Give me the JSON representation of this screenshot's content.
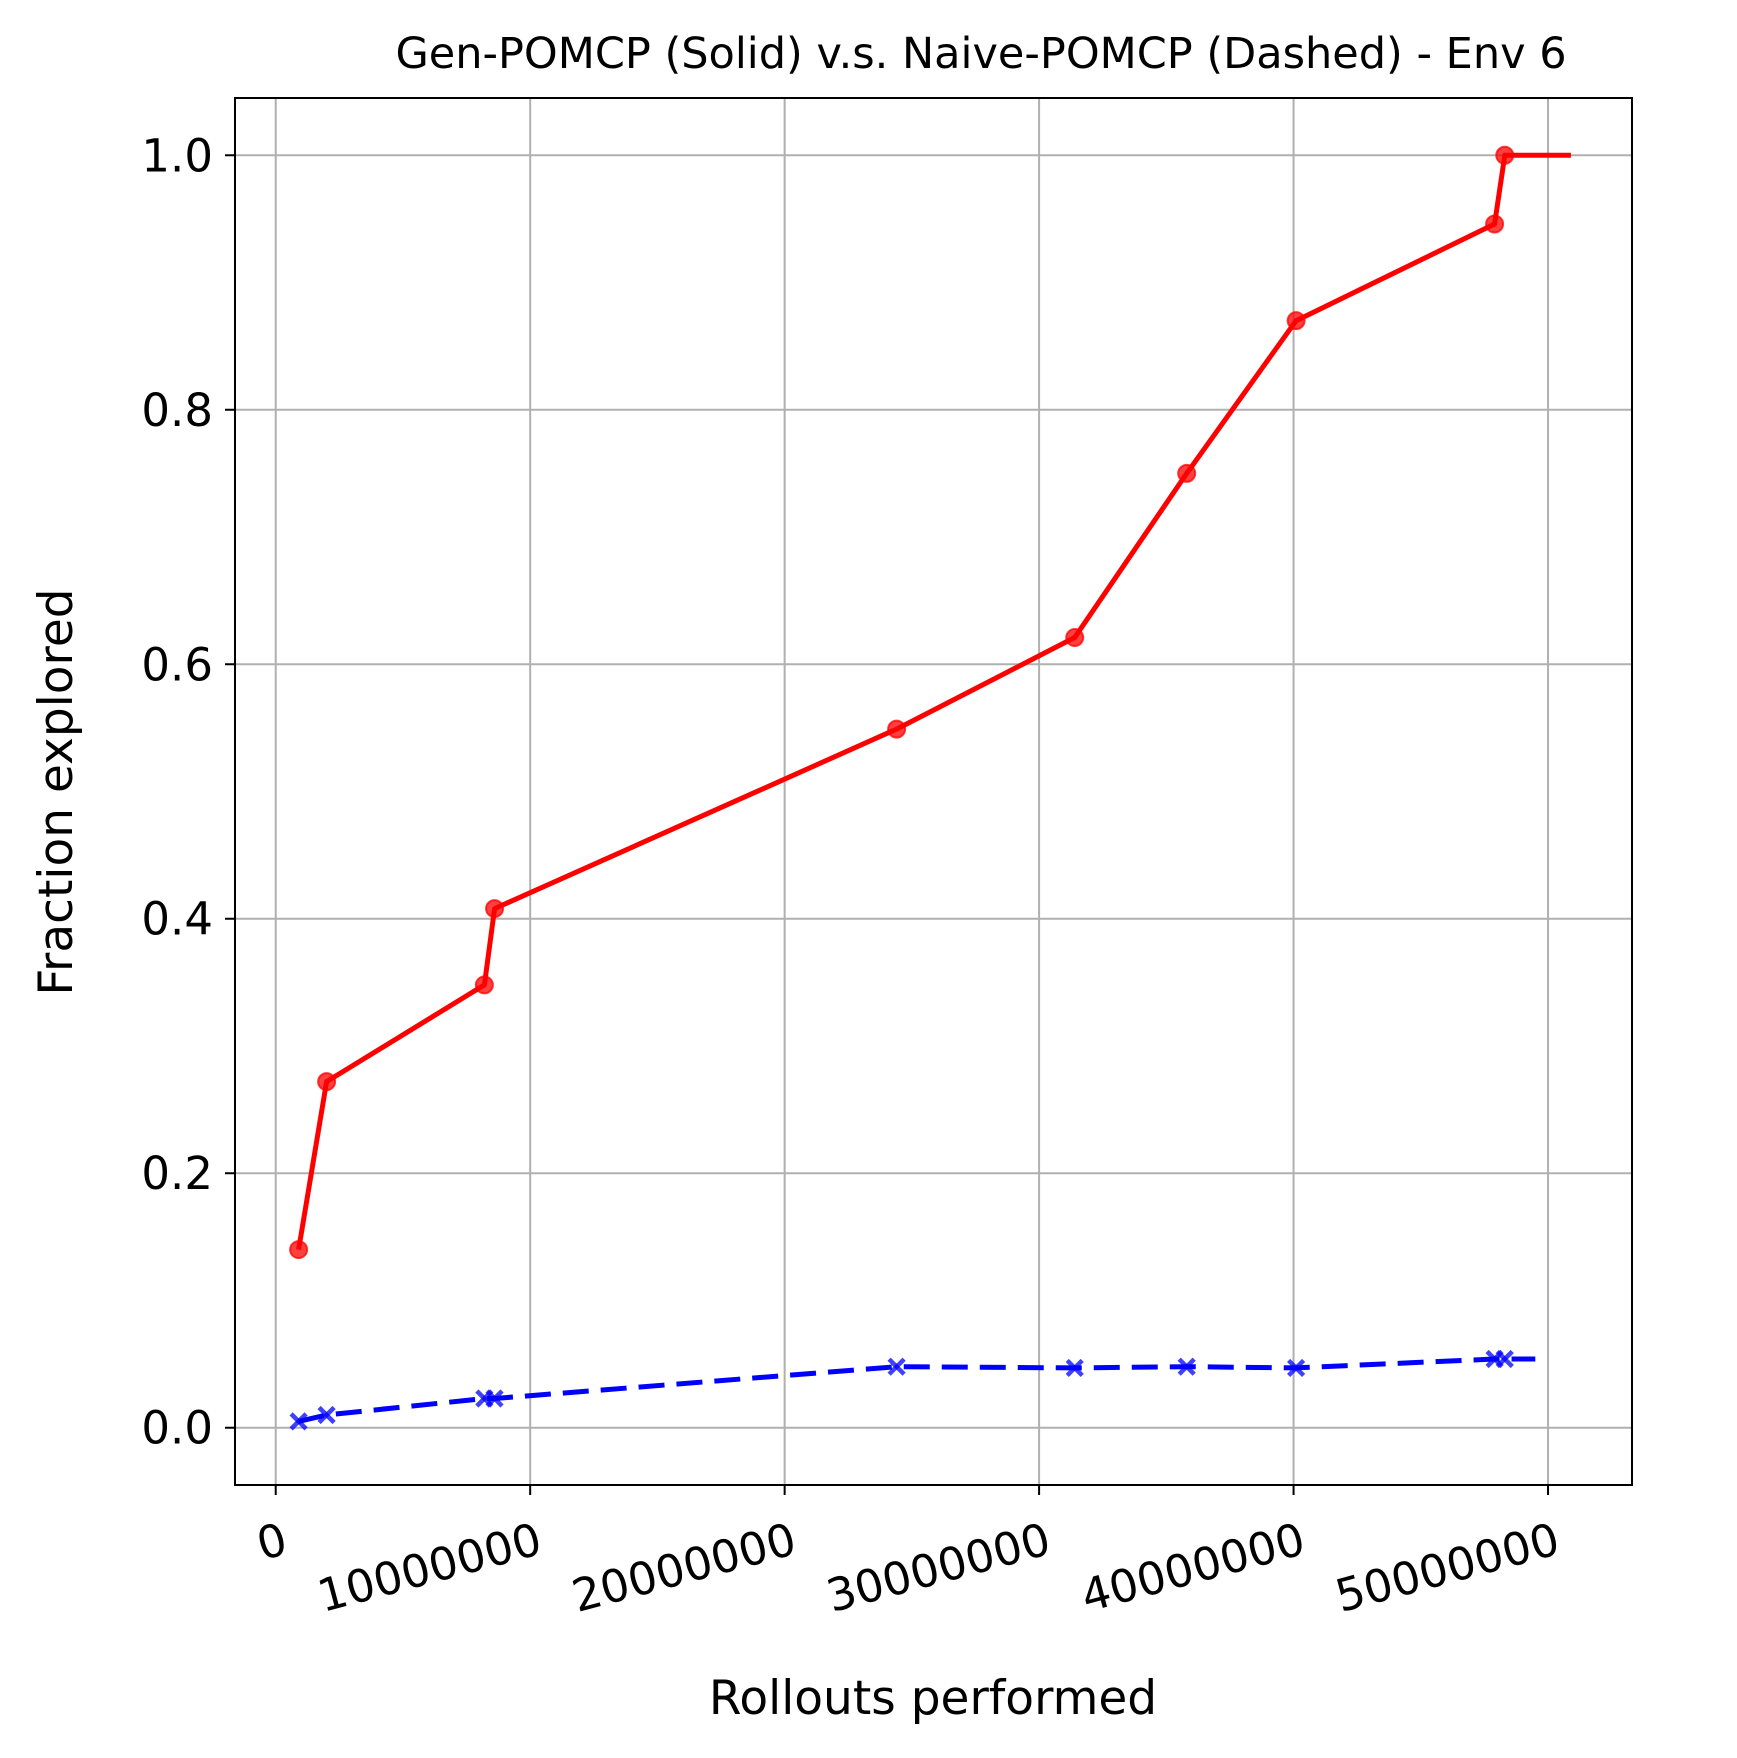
{
  "chart_data": {
    "type": "line",
    "title": "Gen-POMCP (Solid) v.s. Naive-POMCP (Dashed) - Env 6",
    "xlabel": "Rollouts performed",
    "ylabel": "Fraction explored",
    "xlim": [
      -1600000,
      53300000
    ],
    "ylim": [
      -0.045,
      1.045
    ],
    "xticks": [
      0,
      10000000,
      20000000,
      30000000,
      40000000,
      50000000
    ],
    "xtick_labels": [
      "0",
      "10000000",
      "20000000",
      "30000000",
      "40000000",
      "50000000"
    ],
    "yticks": [
      0.0,
      0.2,
      0.4,
      0.6,
      0.8,
      1.0
    ],
    "ytick_labels": [
      "0.0",
      "0.2",
      "0.4",
      "0.6",
      "0.8",
      "1.0"
    ],
    "grid": true,
    "series": [
      {
        "style": "solid",
        "color": "#ff0000",
        "marker": "circle",
        "x": [
          900000,
          2000000,
          8200000,
          8600000,
          24400000,
          31400000,
          35800000,
          40100000,
          47900000,
          48300000
        ],
        "y": [
          0.14,
          0.272,
          0.348,
          0.408,
          0.549,
          0.621,
          0.75,
          0.87,
          0.946,
          1.0
        ],
        "line_end": [
          50900000,
          1.0
        ]
      },
      {
        "style": "dashed",
        "color": "#0000ff",
        "marker": "x",
        "x": [
          900000,
          2000000,
          8200000,
          8600000,
          24400000,
          31400000,
          35800000,
          40100000,
          47900000,
          48300000
        ],
        "y": [
          0.005,
          0.01,
          0.023,
          0.023,
          0.048,
          0.047,
          0.048,
          0.047,
          0.054,
          0.054
        ],
        "line_end": [
          49500000,
          0.054
        ]
      }
    ]
  }
}
